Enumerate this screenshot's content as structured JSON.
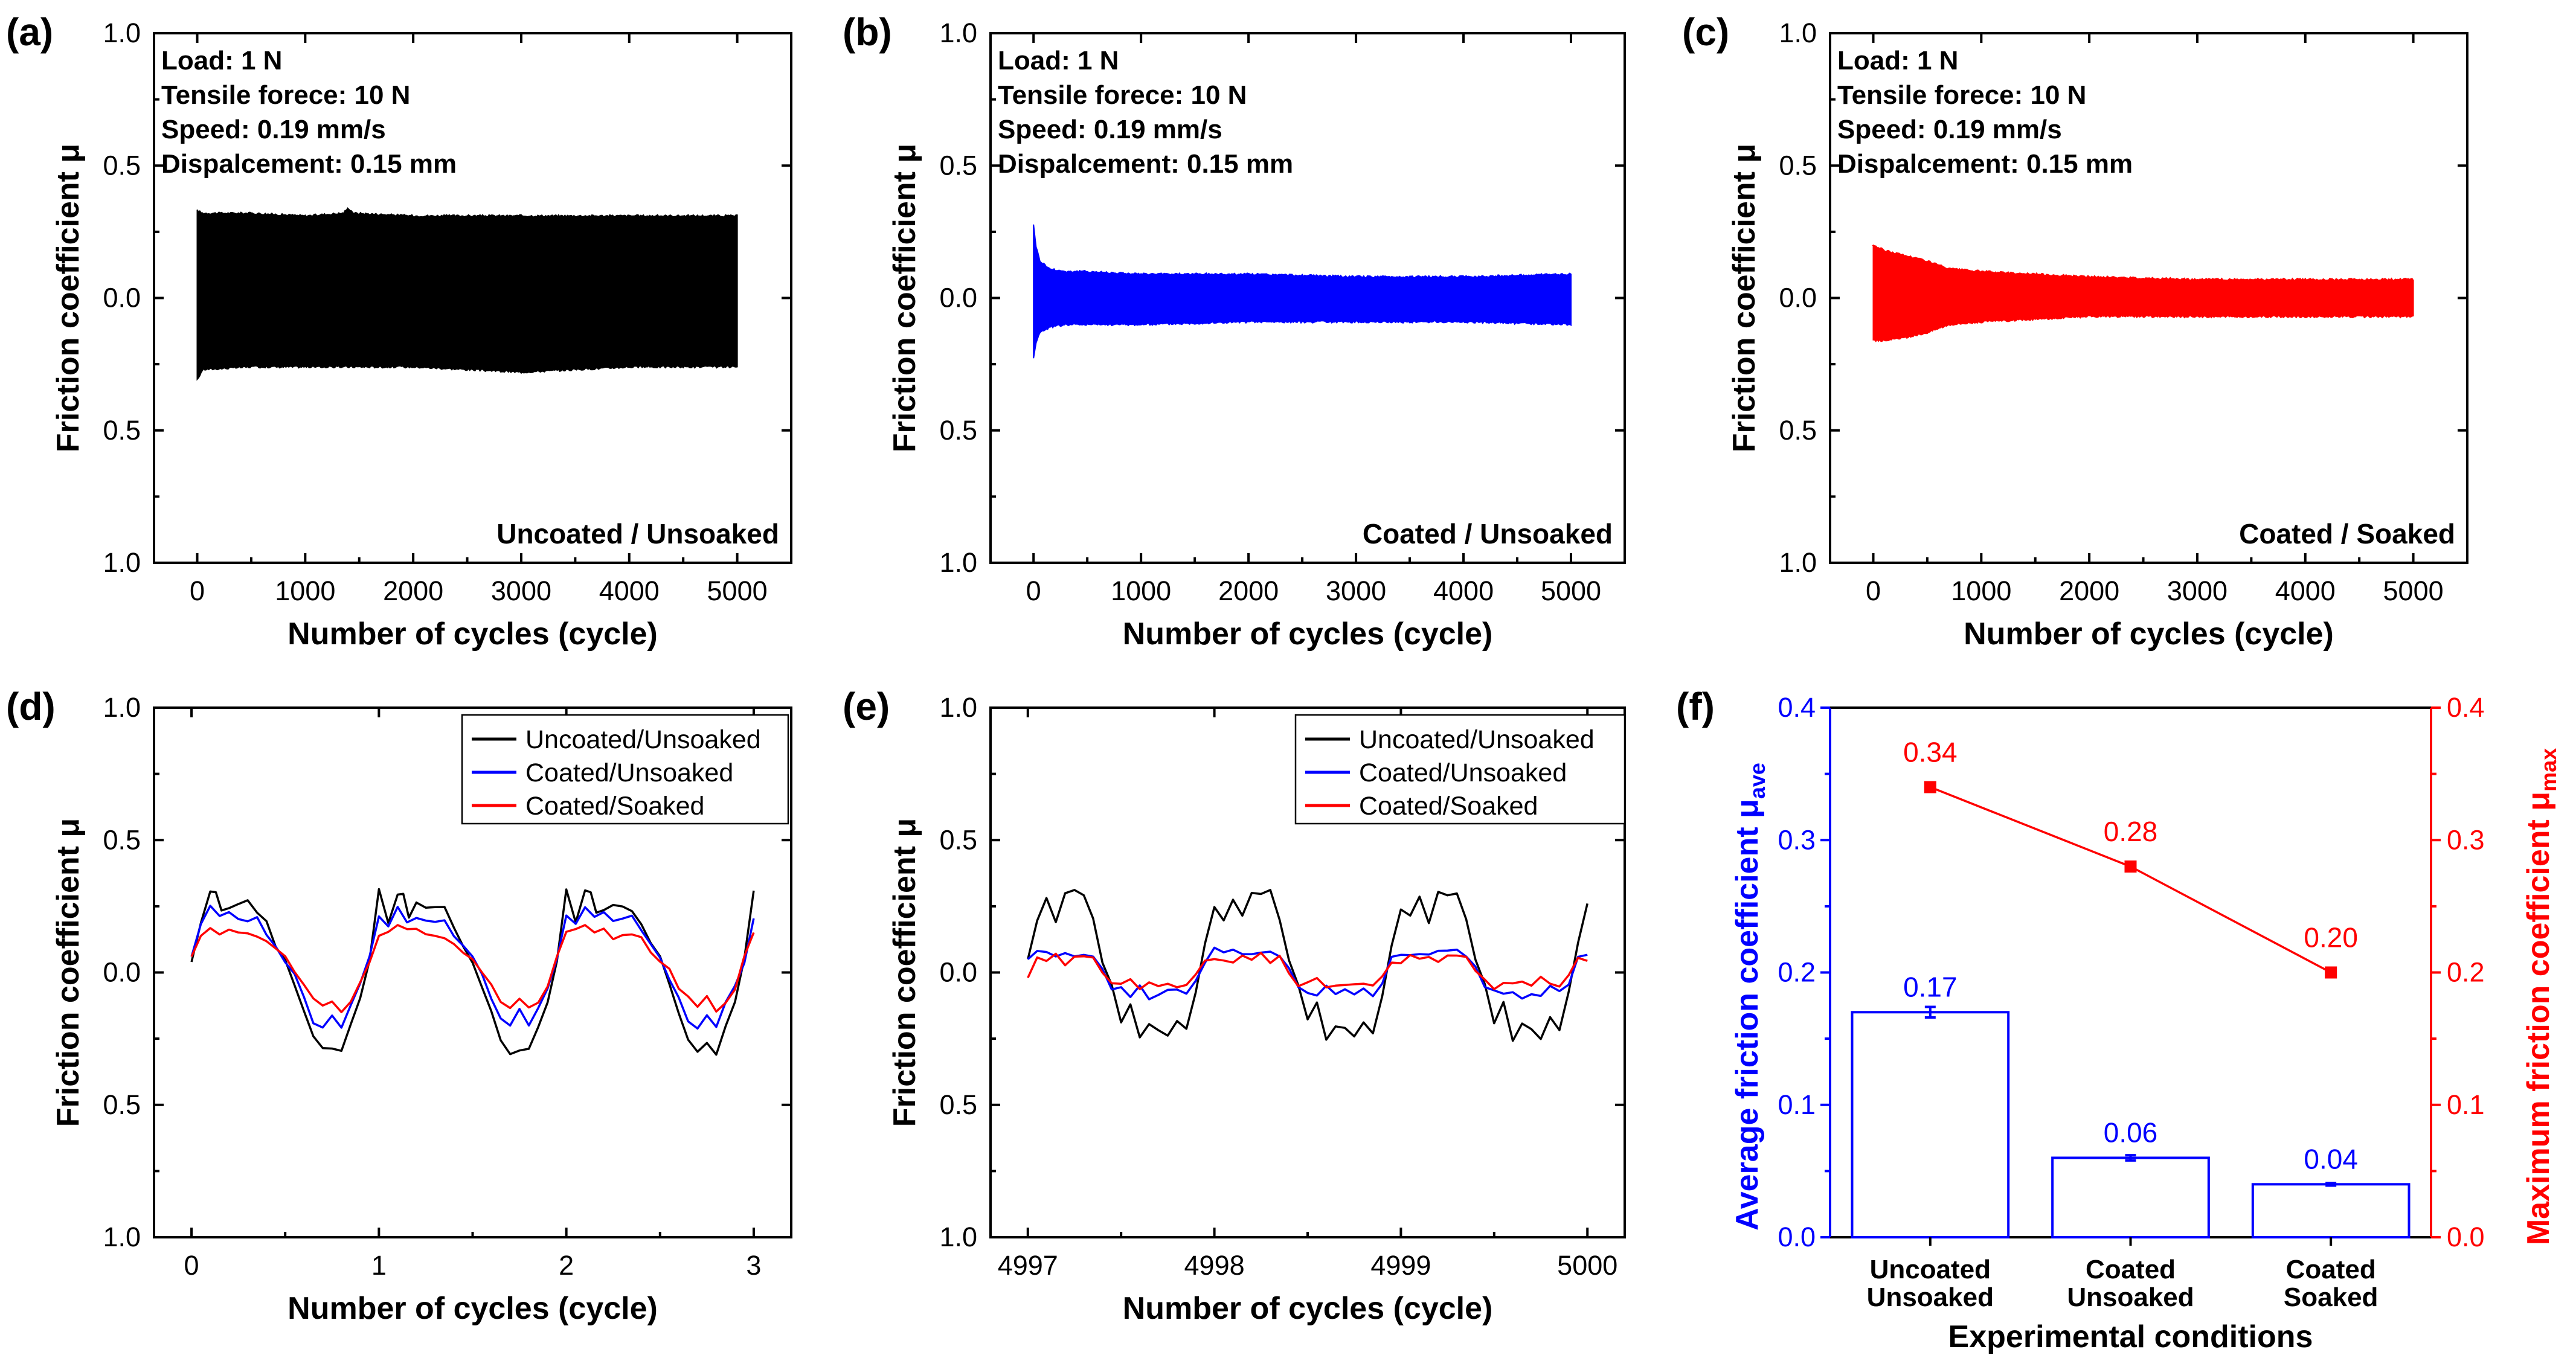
{
  "chart_data": [
    {
      "panel": "(a)",
      "type": "area",
      "xlabel": "Number of cycles (cycle)",
      "ylabel": "Friction coefficient μ",
      "xlim": [
        -400,
        5500
      ],
      "xticks": [
        "0",
        "1000",
        "2000",
        "3000",
        "4000",
        "5000"
      ],
      "ylim": [
        -1.0,
        1.0
      ],
      "yticks": [
        "1.0",
        "0.5",
        "0.0",
        "0.5",
        "1.0"
      ],
      "annotations": [
        "Load: 1 N",
        "Tensile forece: 10 N",
        "Speed: 0.19 mm/s",
        "Dispalcement: 0.15 mm"
      ],
      "condition": "Uncoated / Unsoaked",
      "color": "#000000",
      "series": [
        {
          "x": [
            0,
            50,
            500,
            1000,
            1350,
            1400,
            1450,
            2000,
            3000,
            4000,
            5000
          ],
          "upper": [
            0.33,
            0.32,
            0.32,
            0.31,
            0.32,
            0.34,
            0.32,
            0.31,
            0.31,
            0.31,
            0.31
          ],
          "lower": [
            -0.31,
            -0.27,
            -0.26,
            -0.26,
            -0.26,
            -0.26,
            -0.26,
            -0.26,
            -0.28,
            -0.26,
            -0.26
          ]
        }
      ]
    },
    {
      "panel": "(b)",
      "type": "area",
      "xlabel": "Number of cycles (cycle)",
      "ylabel": "Friction coefficient μ",
      "xlim": [
        -400,
        5500
      ],
      "xticks": [
        "0",
        "1000",
        "2000",
        "3000",
        "4000",
        "5000"
      ],
      "ylim": [
        -1.0,
        1.0
      ],
      "yticks": [
        "1.0",
        "0.5",
        "0.0",
        "0.5",
        "1.0"
      ],
      "annotations": [
        "Load: 1 N",
        "Tensile forece: 10 N",
        "Speed: 0.19 mm/s",
        "Dispalcement: 0.15 mm"
      ],
      "condition": "Coated / Unsoaked",
      "color": "#0000ff",
      "series": [
        {
          "x": [
            0,
            20,
            60,
            150,
            300,
            500,
            1000,
            2000,
            3000,
            4000,
            5000
          ],
          "upper": [
            0.28,
            0.2,
            0.14,
            0.11,
            0.1,
            0.1,
            0.09,
            0.09,
            0.08,
            0.08,
            0.09
          ],
          "lower": [
            -0.23,
            -0.17,
            -0.13,
            -0.11,
            -0.1,
            -0.1,
            -0.1,
            -0.09,
            -0.09,
            -0.09,
            -0.1
          ]
        }
      ]
    },
    {
      "panel": "(c)",
      "type": "area",
      "xlabel": "Number of cycles (cycle)",
      "ylabel": "Friction coefficient μ",
      "xlim": [
        -400,
        5500
      ],
      "xticks": [
        "0",
        "1000",
        "2000",
        "3000",
        "4000",
        "5000"
      ],
      "ylim": [
        -1.0,
        1.0
      ],
      "yticks": [
        "1.0",
        "0.5",
        "0.0",
        "0.5",
        "1.0"
      ],
      "annotations": [
        "Load: 1 N",
        "Tensile forece: 10 N",
        "Speed: 0.19 mm/s",
        "Dispalcement: 0.15 mm"
      ],
      "condition": "Coated / Soaked",
      "color": "#ff0000",
      "series": [
        {
          "x": [
            0,
            100,
            300,
            500,
            700,
            1000,
            1500,
            2000,
            3000,
            4000,
            5000
          ],
          "upper": [
            0.2,
            0.18,
            0.16,
            0.14,
            0.11,
            0.1,
            0.09,
            0.08,
            0.07,
            0.07,
            0.07
          ],
          "lower": [
            -0.16,
            -0.16,
            -0.15,
            -0.13,
            -0.1,
            -0.09,
            -0.08,
            -0.07,
            -0.07,
            -0.07,
            -0.07
          ]
        }
      ]
    },
    {
      "panel": "(d)",
      "type": "line",
      "xlabel": "Number of cycles (cycle)",
      "ylabel": "Friction coefficient μ",
      "xlim": [
        -0.2,
        3.2
      ],
      "xticks": [
        "0",
        "1",
        "2",
        "3"
      ],
      "ylim": [
        -1.0,
        1.0
      ],
      "yticks": [
        "1.0",
        "0.5",
        "0.0",
        "0.5",
        "1.0"
      ],
      "legend": "top-right",
      "series": [
        {
          "name": "Uncoated/Unsoaked",
          "color": "#000000",
          "period": 1,
          "offset": 0,
          "x": [
            0,
            0.05,
            0.1,
            0.13,
            0.16,
            0.2,
            0.25,
            0.3,
            0.35,
            0.4,
            0.45,
            0.5,
            0.55,
            0.6,
            0.65,
            0.7,
            0.75,
            0.8,
            0.85,
            0.9,
            0.95,
            1
          ],
          "y": [
            0.04,
            0.2,
            0.3,
            0.3,
            0.22,
            0.25,
            0.25,
            0.26,
            0.24,
            0.18,
            0.1,
            0.05,
            -0.05,
            -0.15,
            -0.25,
            -0.3,
            -0.28,
            -0.3,
            -0.2,
            -0.1,
            0.05,
            0.3
          ]
        },
        {
          "name": "Coated/Unsoaked",
          "color": "#0000ff",
          "period": 1,
          "offset": 0,
          "x": [
            0,
            0.05,
            0.1,
            0.15,
            0.2,
            0.25,
            0.3,
            0.35,
            0.4,
            0.45,
            0.5,
            0.55,
            0.6,
            0.65,
            0.7,
            0.75,
            0.8,
            0.85,
            0.9,
            0.95,
            1
          ],
          "y": [
            0.06,
            0.18,
            0.25,
            0.2,
            0.22,
            0.2,
            0.19,
            0.2,
            0.15,
            0.1,
            0.05,
            -0.02,
            -0.1,
            -0.18,
            -0.2,
            -0.15,
            -0.2,
            -0.12,
            -0.05,
            0.05,
            0.2
          ]
        },
        {
          "name": "Coated/Soaked",
          "color": "#ff0000",
          "period": 1,
          "offset": 0,
          "x": [
            0,
            0.05,
            0.1,
            0.15,
            0.2,
            0.25,
            0.3,
            0.35,
            0.4,
            0.45,
            0.5,
            0.55,
            0.6,
            0.65,
            0.7,
            0.75,
            0.8,
            0.85,
            0.9,
            0.95,
            1
          ],
          "y": [
            0.06,
            0.15,
            0.17,
            0.15,
            0.16,
            0.14,
            0.15,
            0.13,
            0.12,
            0.08,
            0.05,
            0.0,
            -0.06,
            -0.1,
            -0.13,
            -0.1,
            -0.14,
            -0.1,
            -0.05,
            0.05,
            0.14
          ]
        }
      ]
    },
    {
      "panel": "(e)",
      "type": "line",
      "xlabel": "Number of cycles (cycle)",
      "ylabel": "Friction coefficient μ",
      "xlim": [
        4996.8,
        5000.2
      ],
      "xticks": [
        "4997",
        "4998",
        "4999",
        "5000"
      ],
      "ylim": [
        -1.0,
        1.0
      ],
      "yticks": [
        "1.0",
        "0.5",
        "0.0",
        "0.5",
        "1.0"
      ],
      "legend": "top-right",
      "series": [
        {
          "name": "Uncoated/Unsoaked",
          "color": "#000000",
          "period": 1,
          "offset": 4997,
          "x": [
            0,
            0.05,
            0.1,
            0.15,
            0.2,
            0.25,
            0.3,
            0.35,
            0.4,
            0.45,
            0.5,
            0.55,
            0.6,
            0.65,
            0.7,
            0.75,
            0.8,
            0.85,
            0.9,
            0.95,
            1
          ],
          "y": [
            0.05,
            0.2,
            0.28,
            0.2,
            0.3,
            0.3,
            0.3,
            0.2,
            0.05,
            -0.05,
            -0.18,
            -0.12,
            -0.25,
            -0.2,
            -0.22,
            -0.25,
            -0.18,
            -0.22,
            -0.08,
            0.1,
            0.25
          ]
        },
        {
          "name": "Coated/Unsoaked",
          "color": "#0000ff",
          "period": 1,
          "offset": 4997,
          "x": [
            0,
            0.05,
            0.1,
            0.15,
            0.2,
            0.25,
            0.3,
            0.35,
            0.4,
            0.45,
            0.5,
            0.55,
            0.6,
            0.65,
            0.7,
            0.75,
            0.8,
            0.85,
            0.9,
            0.95,
            1
          ],
          "y": [
            0.05,
            0.07,
            0.08,
            0.06,
            0.08,
            0.07,
            0.08,
            0.06,
            0.02,
            -0.05,
            -0.07,
            -0.08,
            -0.06,
            -0.09,
            -0.07,
            -0.08,
            -0.06,
            -0.08,
            -0.04,
            0.05,
            0.08
          ]
        },
        {
          "name": "Coated/Soaked",
          "color": "#ff0000",
          "period": 1,
          "offset": 4997,
          "x": [
            0,
            0.05,
            0.1,
            0.15,
            0.2,
            0.25,
            0.3,
            0.35,
            0.4,
            0.45,
            0.5,
            0.55,
            0.6,
            0.65,
            0.7,
            0.75,
            0.8,
            0.85,
            0.9,
            0.95,
            1
          ],
          "y": [
            -0.02,
            0.06,
            0.05,
            0.06,
            0.04,
            0.06,
            0.05,
            0.06,
            0.0,
            -0.04,
            -0.05,
            -0.03,
            -0.05,
            -0.04,
            -0.05,
            -0.03,
            -0.05,
            -0.04,
            -0.02,
            0.05,
            0.05
          ]
        }
      ]
    },
    {
      "panel": "(f)",
      "type": "bar",
      "xlabel": "Experimental conditions",
      "categories": [
        [
          "Uncoated",
          "Unsoaked"
        ],
        [
          "Coated",
          "Unsoaked"
        ],
        [
          "Coated",
          "Soaked"
        ]
      ],
      "ylabel_left": "Average friction coefficient μ",
      "ylabel_left_sub": "ave",
      "ylabel_right": "Maximum friction coefficient μ",
      "ylabel_right_sub": "max",
      "ylim": [
        0,
        0.4
      ],
      "yticks": [
        "0.0",
        "0.1",
        "0.2",
        "0.3",
        "0.4"
      ],
      "series": [
        {
          "name": "μave",
          "color": "#0000ff",
          "kind": "bar",
          "values": [
            0.17,
            0.06,
            0.04
          ],
          "errors": [
            0.004,
            0.002,
            0.001
          ],
          "labels": [
            "0.17",
            "0.06",
            "0.04"
          ]
        },
        {
          "name": "μmax",
          "color": "#ff0000",
          "kind": "line",
          "values": [
            0.34,
            0.28,
            0.2
          ],
          "labels": [
            "0.34",
            "0.28",
            "0.20"
          ]
        }
      ]
    }
  ]
}
